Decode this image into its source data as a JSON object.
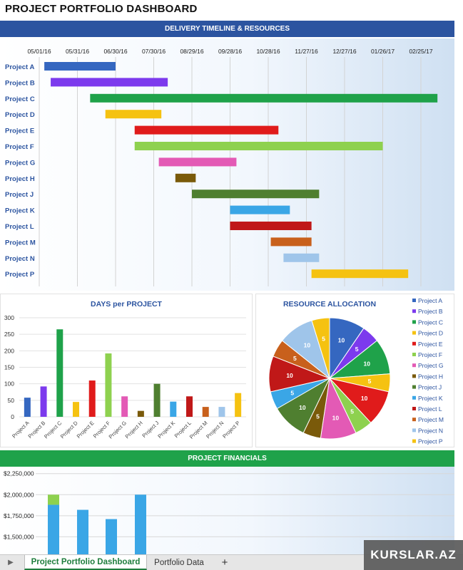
{
  "page_title": "PROJECT PORTFOLIO DASHBOARD",
  "sections": {
    "timeline": "DELIVERY TIMELINE & RESOURCES",
    "financials": "PROJECT FINANCIALS"
  },
  "tabs": {
    "active": "Project Portfolio Dashboard",
    "data": "Portfolio Data",
    "add": "+",
    "play": "▶"
  },
  "watermark": "KURSLAR.AZ",
  "colors": {
    "A": "#3567c0",
    "B": "#7c3aed",
    "C": "#1fa24a",
    "D": "#f5c211",
    "E": "#e01b1b",
    "F": "#8ed14f",
    "G": "#e35ab5",
    "H": "#7a5a0a",
    "J": "#4f7f30",
    "K": "#3aa6e6",
    "L": "#c01818",
    "M": "#c8601c",
    "N": "#9fc5ea",
    "P": "#f5c211"
  },
  "chart_data": [
    {
      "type": "bar",
      "subtype": "gantt",
      "title": "",
      "date_ticks": [
        "05/01/16",
        "05/31/16",
        "06/30/16",
        "07/30/16",
        "08/29/16",
        "09/28/16",
        "10/28/16",
        "11/27/16",
        "12/27/16",
        "01/26/17",
        "02/25/17"
      ],
      "tasks": [
        {
          "name": "Project A",
          "start": "2016-05-05",
          "end": "2016-06-30"
        },
        {
          "name": "Project B",
          "start": "2016-05-10",
          "end": "2016-08-10"
        },
        {
          "name": "Project C",
          "start": "2016-06-10",
          "end": "2017-03-10"
        },
        {
          "name": "Project D",
          "start": "2016-06-22",
          "end": "2016-08-05"
        },
        {
          "name": "Project E",
          "start": "2016-07-15",
          "end": "2016-11-05"
        },
        {
          "name": "Project F",
          "start": "2016-07-15",
          "end": "2017-01-26"
        },
        {
          "name": "Project G",
          "start": "2016-08-03",
          "end": "2016-10-03"
        },
        {
          "name": "Project H",
          "start": "2016-08-16",
          "end": "2016-09-01"
        },
        {
          "name": "Project J",
          "start": "2016-08-29",
          "end": "2016-12-07"
        },
        {
          "name": "Project K",
          "start": "2016-09-28",
          "end": "2016-11-14"
        },
        {
          "name": "Project L",
          "start": "2016-09-28",
          "end": "2016-12-01"
        },
        {
          "name": "Project M",
          "start": "2016-10-30",
          "end": "2016-12-01"
        },
        {
          "name": "Project N",
          "start": "2016-11-09",
          "end": "2016-12-07"
        },
        {
          "name": "Project P",
          "start": "2016-12-01",
          "end": "2017-02-15"
        }
      ]
    },
    {
      "type": "bar",
      "title": "DAYS per PROJECT",
      "categories": [
        "Project A",
        "Project B",
        "Project C",
        "Project D",
        "Project E",
        "Project F",
        "Project G",
        "Project H",
        "Project J",
        "Project K",
        "Project L",
        "Project M",
        "Project N",
        "Project P"
      ],
      "values": [
        58,
        92,
        265,
        45,
        110,
        192,
        62,
        18,
        100,
        46,
        62,
        30,
        30,
        72
      ],
      "yticks": [
        0,
        50,
        100,
        150,
        200,
        250,
        300
      ],
      "ylim": [
        0,
        300
      ],
      "grid": true
    },
    {
      "type": "pie",
      "title": "RESOURCE ALLOCATION",
      "categories": [
        "Project A",
        "Project B",
        "Project C",
        "Project D",
        "Project E",
        "Project F",
        "Project G",
        "Project H",
        "Project J",
        "Project K",
        "Project L",
        "Project M",
        "Project N",
        "Project P"
      ],
      "values": [
        10,
        5,
        10,
        5,
        10,
        5,
        10,
        5,
        10,
        5,
        10,
        5,
        10,
        5
      ],
      "legend": "right"
    },
    {
      "type": "bar",
      "title": "",
      "stacked": true,
      "yticks": [
        "$1,500,000",
        "$1,750,000",
        "$2,000,000",
        "$2,250,000"
      ],
      "ytick_values": [
        1500000,
        1750000,
        2000000,
        2250000
      ],
      "series": [
        {
          "values": [
            1880000,
            1820000,
            1710000,
            2000000
          ]
        },
        {
          "values": [
            120000,
            0,
            0,
            0
          ]
        }
      ],
      "grid": true
    }
  ]
}
